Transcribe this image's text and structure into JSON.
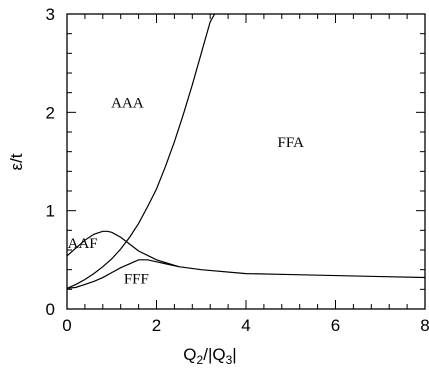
{
  "chart_data": {
    "type": "line",
    "xlabel": "Q₂/|Q₃|",
    "ylabel": "ε/t",
    "xlim": [
      0,
      8
    ],
    "ylim": [
      0,
      3
    ],
    "x_major_ticks": [
      0,
      2,
      4,
      6,
      8
    ],
    "x_major_tick_labels": [
      "0",
      "2",
      "4",
      "6",
      "8"
    ],
    "y_major_ticks": [
      0,
      1,
      2,
      3
    ],
    "y_major_tick_labels": [
      "0",
      "1",
      "2",
      "3"
    ],
    "x_minor_step": 0.4,
    "y_minor_step": 0.2,
    "grid": false,
    "series": [
      {
        "x": [
          0,
          0.2,
          0.4,
          0.6,
          0.8,
          1.0,
          1.2,
          1.4,
          1.6,
          1.8,
          2.0,
          2.2,
          2.4,
          2.6,
          2.8,
          3.0,
          3.2,
          3.3
        ],
        "y": [
          0.21,
          0.25,
          0.3,
          0.36,
          0.43,
          0.51,
          0.61,
          0.73,
          0.87,
          1.04,
          1.22,
          1.45,
          1.7,
          1.98,
          2.28,
          2.6,
          2.92,
          3.0
        ]
      },
      {
        "x": [
          0,
          0.2,
          0.4,
          0.6,
          0.8,
          0.9,
          1.0,
          1.2,
          1.4,
          1.6,
          2.0,
          2.5,
          3.0,
          4.0,
          5.0,
          6.0,
          7.0,
          8.0
        ],
        "y": [
          0.54,
          0.62,
          0.7,
          0.76,
          0.79,
          0.79,
          0.78,
          0.73,
          0.66,
          0.59,
          0.5,
          0.43,
          0.4,
          0.36,
          0.35,
          0.34,
          0.33,
          0.32
        ]
      },
      {
        "x": [
          0,
          0.2,
          0.4,
          0.6,
          0.8,
          1.0,
          1.2,
          1.4,
          1.6,
          1.8,
          2.0,
          2.2,
          2.5
        ],
        "y": [
          0.21,
          0.22,
          0.25,
          0.28,
          0.32,
          0.37,
          0.42,
          0.46,
          0.5,
          0.5,
          0.48,
          0.46,
          0.43
        ]
      }
    ],
    "annotations": [
      {
        "text": "AAA",
        "x": 1.35,
        "y": 2.05
      },
      {
        "text": "FFA",
        "x": 5.0,
        "y": 1.65
      },
      {
        "text": "AAF",
        "x": 0.35,
        "y": 0.62
      },
      {
        "text": "FFF",
        "x": 1.55,
        "y": 0.26
      }
    ]
  }
}
